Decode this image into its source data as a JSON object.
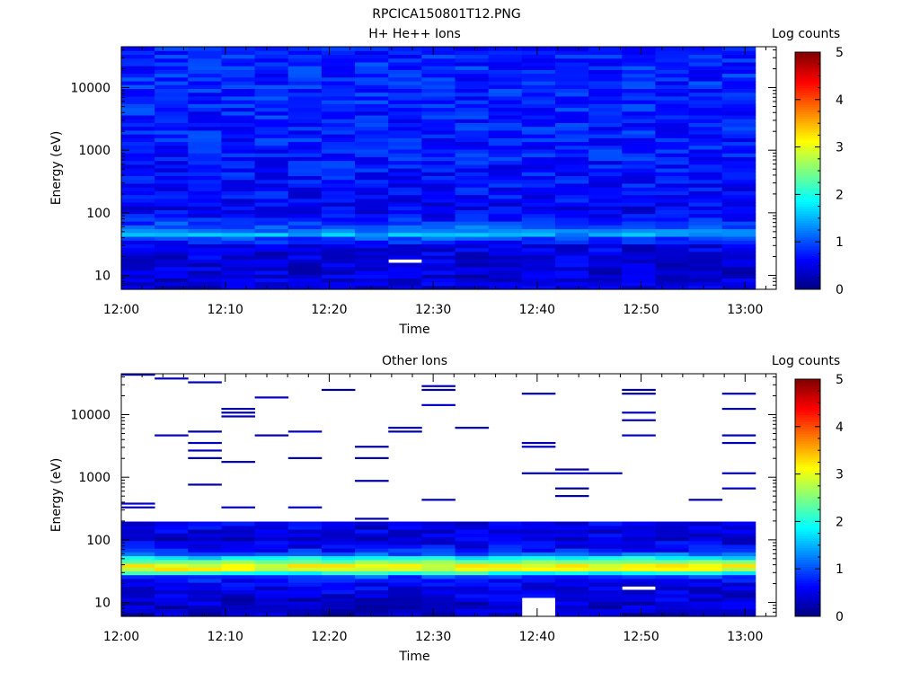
{
  "figure_title": "RPCICA150801T12.PNG",
  "chart_data": [
    {
      "type": "heatmap",
      "title": "H+ He++ Ions",
      "xlabel": "Time",
      "ylabel": "Energy (eV)",
      "x_ticks": [
        "12:00",
        "12:10",
        "12:20",
        "12:30",
        "12:40",
        "12:50",
        "13:00"
      ],
      "x_range": [
        "12:00",
        "13:03"
      ],
      "y_ticks": [
        "10",
        "100",
        "1000",
        "10000"
      ],
      "y_scale": "log",
      "y_range": [
        6,
        45000
      ],
      "colorbar": {
        "label": "Log counts",
        "ticks": [
          "0",
          "1",
          "2",
          "3",
          "4",
          "5"
        ],
        "range": [
          0,
          5
        ],
        "colormap": "jet"
      },
      "time_bins": 19,
      "energy_bins": 64,
      "data_end": "13:01",
      "profile": {
        "energy_eV": [
          6,
          10,
          20,
          30,
          40,
          45,
          60,
          100,
          200,
          1000,
          10000,
          45000
        ],
        "log_counts": [
          0.45,
          0.45,
          0.45,
          0.55,
          1.0,
          1.45,
          1.05,
          0.55,
          0.65,
          0.75,
          0.8,
          0.8
        ]
      },
      "gaps": [
        {
          "time": "12:28",
          "energy_eV": [
            16,
            19
          ]
        }
      ]
    },
    {
      "type": "heatmap",
      "title": "Other Ions",
      "xlabel": "Time",
      "ylabel": "Energy (eV)",
      "x_ticks": [
        "12:00",
        "12:10",
        "12:20",
        "12:30",
        "12:40",
        "12:50",
        "13:00"
      ],
      "x_range": [
        "12:00",
        "13:03"
      ],
      "y_ticks": [
        "10",
        "100",
        "1000",
        "10000"
      ],
      "y_scale": "log",
      "y_range": [
        6,
        45000
      ],
      "colorbar": {
        "label": "Log counts",
        "ticks": [
          "0",
          "1",
          "2",
          "3",
          "4",
          "5"
        ],
        "range": [
          0,
          5
        ],
        "colormap": "jet"
      },
      "time_bins": 19,
      "energy_bins": 64,
      "data_end": "13:01",
      "profile": {
        "energy_eV": [
          6,
          15,
          25,
          28,
          32,
          36,
          42,
          48,
          60,
          70,
          100,
          150,
          200
        ],
        "log_counts": [
          0.3,
          0.5,
          0.7,
          1.5,
          2.6,
          3.3,
          2.8,
          2.2,
          1.1,
          0.7,
          0.45,
          0.5,
          0.55
        ]
      },
      "sparse_above_eV": 200,
      "gaps": [
        {
          "time": "12:40",
          "energy_eV": [
            6,
            12
          ]
        },
        {
          "time": "12:50",
          "energy_eV": [
            16,
            19
          ]
        }
      ]
    }
  ]
}
